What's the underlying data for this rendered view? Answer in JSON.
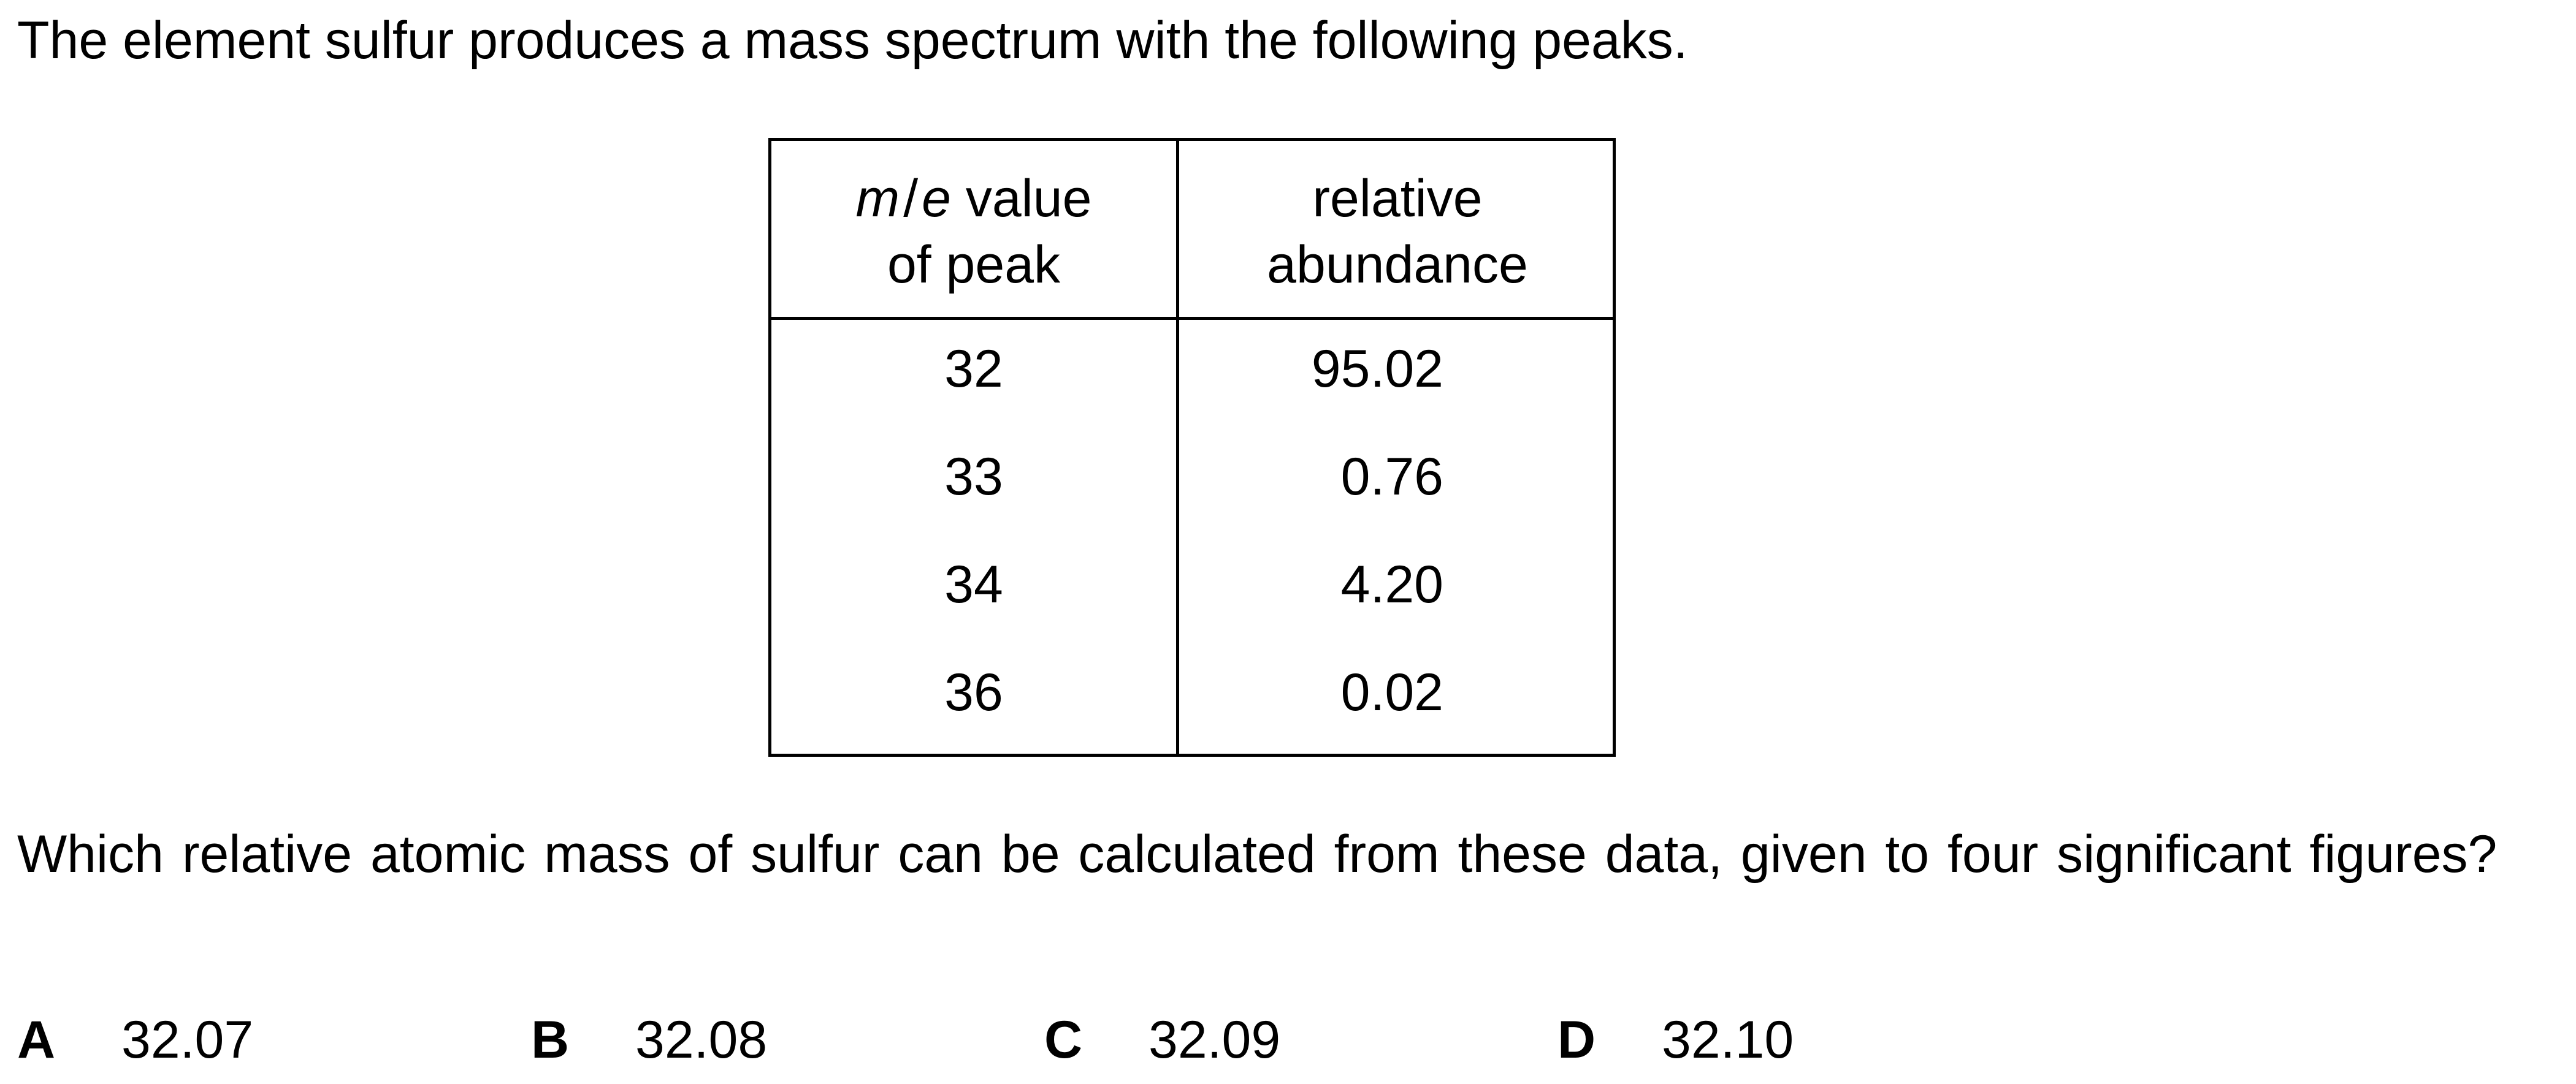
{
  "intro": "The element sulfur produces a mass spectrum with the following peaks.",
  "table": {
    "header_col1": {
      "m": "m",
      "slash": "/",
      "e": "e",
      "rest": " value",
      "line2": "of peak"
    },
    "header_col2": {
      "line1": "relative",
      "line2": "abundance"
    },
    "rows": [
      {
        "me": "32",
        "abundance": "95.02"
      },
      {
        "me": "33",
        "abundance": "0.76"
      },
      {
        "me": "34",
        "abundance": "4.20"
      },
      {
        "me": "36",
        "abundance": "0.02"
      }
    ]
  },
  "question": "Which relative atomic mass of sulfur can be calculated from these data, given to four significant figures?",
  "options": [
    {
      "letter": "A",
      "value": "32.07"
    },
    {
      "letter": "B",
      "value": "32.08"
    },
    {
      "letter": "C",
      "value": "32.09"
    },
    {
      "letter": "D",
      "value": "32.10"
    }
  ]
}
